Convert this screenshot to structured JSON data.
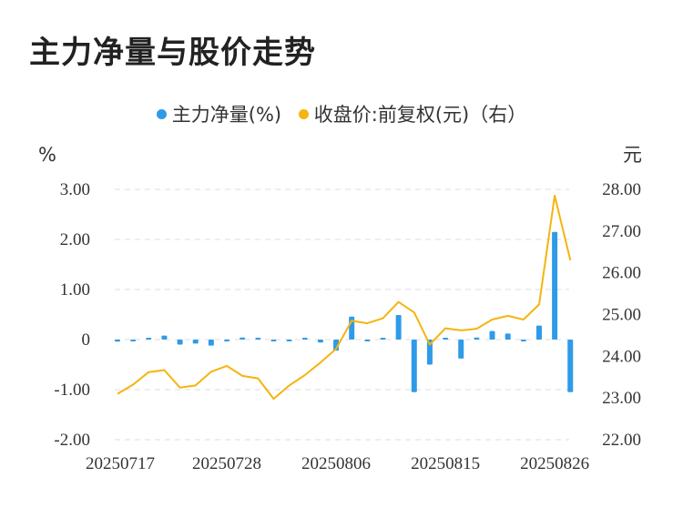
{
  "title": "主力净量与股价走势",
  "legend": {
    "bar_label": "主力净量(%)",
    "line_label": "收盘价:前复权(元)（右）"
  },
  "colors": {
    "bar": "#2f9be8",
    "line": "#f5b40f",
    "grid": "#e3e3e3"
  },
  "chart_data": {
    "type": "bar",
    "title": "主力净量与股价走势",
    "left_axis": {
      "unit": "%",
      "ylim": [
        -2,
        3
      ],
      "ticks": [
        3,
        2,
        1,
        0,
        -1,
        -2
      ],
      "tick_labels": [
        "3.00",
        "2.00",
        "1.00",
        "0",
        "-1.00",
        "-2.00"
      ]
    },
    "right_axis": {
      "unit": "元",
      "ylim": [
        22,
        28
      ],
      "ticks": [
        28,
        27,
        26,
        25,
        24,
        23,
        22
      ],
      "tick_labels": [
        "28.00",
        "27.00",
        "26.00",
        "25.00",
        "24.00",
        "23.00",
        "22.00"
      ]
    },
    "x_tick_labels": [
      "20250717",
      "20250728",
      "20250806",
      "20250815",
      "20250826"
    ],
    "x_tick_indices": [
      0,
      7,
      14,
      21,
      28
    ],
    "grid": true,
    "series": [
      {
        "name": "主力净量(%)",
        "type": "bar",
        "axis": "left",
        "values": [
          -0.04,
          -0.01,
          0.02,
          0.08,
          -0.1,
          -0.08,
          -0.12,
          -0.03,
          0.04,
          0.01,
          -0.03,
          -0.03,
          0.01,
          -0.06,
          -0.22,
          0.46,
          -0.02,
          0.01,
          0.49,
          -1.05,
          -0.5,
          0.01,
          -0.38,
          0.04,
          0.17,
          0.12,
          -0.03,
          0.28,
          2.15,
          -1.05
        ]
      },
      {
        "name": "收盘价:前复权(元)（右）",
        "type": "line",
        "axis": "right",
        "values": [
          23.1,
          23.32,
          23.62,
          23.67,
          23.25,
          23.3,
          23.63,
          23.77,
          23.53,
          23.47,
          22.98,
          23.3,
          23.55,
          23.85,
          24.18,
          24.85,
          24.79,
          24.91,
          25.3,
          25.05,
          24.28,
          24.67,
          24.62,
          24.66,
          24.88,
          24.97,
          24.88,
          25.24,
          27.85,
          26.3
        ]
      }
    ]
  }
}
